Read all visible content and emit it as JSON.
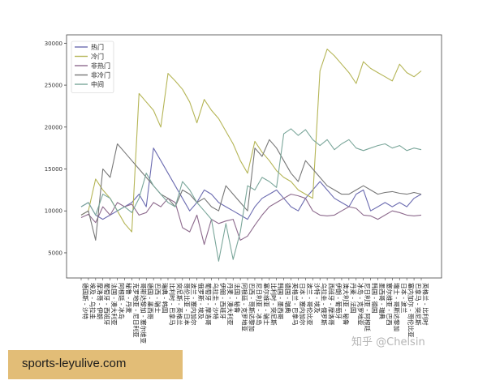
{
  "chart_data": {
    "type": "line",
    "categories": [
      "德国斯 - 沙特",
      "埃及 - 乌拉圭",
      "摩洛哥 - 伊朗",
      "葡萄牙 - 西班牙",
      "法国 - 澳大利亚",
      "阿根廷 - 冰岛",
      "秘鲁 - 丹麦",
      "克罗地亚 - 尼日利亚",
      "哥斯达黎加 - 塞尔维亚",
      "德国 - 墨西哥",
      "巴西 - 瑞士",
      "瑞典 - 韩国",
      "比利时 - 巴拿马",
      "突尼斯 - 英格兰",
      "哥伦比亚 - 日本",
      "波兰 - 塞内加尔",
      "俄罗斯 - 埃及",
      "葡萄牙 - 摩洛哥",
      "乌拉圭 - 沙特",
      "伊朗 - 西班牙",
      "丹麦 - 澳大利亚",
      "法国 - 秘鲁",
      "阿根廷 - 克罗地亚",
      "巴西 - 哥斯达黎加",
      "尼日利亚 - 冰岛",
      "塞尔维亚 - 瑞士",
      "比利时 - 突尼斯",
      "韩国 - 墨西哥",
      "德国 - 瑞典",
      "英格兰 - 巴拿马",
      "日本 - 塞内加尔",
      "波兰 - 哥伦比亚",
      "沙特 - 埃及",
      "乌拉圭 - 俄罗斯",
      "西班牙 - 摩洛哥",
      "伊朗 - 葡萄牙",
      "澳大利亚 - 秘鲁",
      "丹麦 - 法国",
      "冰岛 - 克罗地亚",
      "尼日利亚 - 阿根廷",
      "韩国 - 德国",
      "墨西哥 - 瑞典",
      "塞尔维亚 - 巴西",
      "瑞士 - 哥斯达黎加",
      "日本 - 波兰",
      "塞内加尔 - 哥伦比亚",
      "巴拿马 - 突尼斯",
      "英格兰 - 比利时"
    ],
    "series": [
      {
        "name": "热门",
        "color": "#6b6bb0",
        "values": [
          10500,
          11000,
          9500,
          9000,
          9500,
          10000,
          10500,
          11000,
          12000,
          10500,
          17500,
          16000,
          14500,
          13000,
          11500,
          10000,
          11000,
          12500,
          12000,
          11000,
          10500,
          10000,
          9500,
          9000,
          10500,
          11500,
          12000,
          12500,
          11500,
          10500,
          10000,
          11500,
          12500,
          13500,
          12500,
          11500,
          11000,
          10500,
          12000,
          12500,
          10000,
          10500,
          11000,
          10500,
          11000,
          10500,
          11500,
          12000
        ]
      },
      {
        "name": "冷门",
        "color": "#b5b556",
        "values": [
          9500,
          10000,
          13800,
          12500,
          11500,
          10000,
          8500,
          7500,
          24000,
          23000,
          22000,
          20000,
          26400,
          25500,
          24500,
          23000,
          20500,
          23300,
          22000,
          21000,
          19500,
          18000,
          16000,
          14500,
          18300,
          17000,
          16000,
          14800,
          14000,
          13500,
          12500,
          12000,
          11500,
          26700,
          29300,
          28500,
          27500,
          26500,
          25200,
          27800,
          27000,
          26500,
          26000,
          25500,
          27500,
          26500,
          26000,
          26700
        ]
      },
      {
        "name": "非热门",
        "color": "#8d6a8d",
        "values": [
          9200,
          9600,
          8600,
          10500,
          9500,
          11000,
          10500,
          10800,
          9500,
          9800,
          11000,
          10500,
          11500,
          11000,
          8000,
          7500,
          9500,
          6000,
          9000,
          8500,
          8800,
          9000,
          6500,
          7000,
          8300,
          9500,
          10500,
          11000,
          11500,
          12000,
          11800,
          11500,
          10000,
          9500,
          9400,
          9500,
          10000,
          10500,
          10300,
          9500,
          9400,
          9000,
          9500,
          10000,
          9800,
          9500,
          9400,
          9500
        ]
      },
      {
        "name": "非冷门",
        "color": "#777777",
        "values": [
          9500,
          10000,
          6500,
          15000,
          14000,
          18000,
          17000,
          16000,
          15000,
          14000,
          13000,
          12000,
          11500,
          10500,
          12500,
          12000,
          11000,
          11500,
          10500,
          10000,
          13000,
          12000,
          11000,
          10000,
          17500,
          16500,
          18500,
          17500,
          16000,
          14500,
          13500,
          16000,
          15000,
          14000,
          13000,
          12500,
          12000,
          12000,
          12500,
          13000,
          12500,
          12000,
          12200,
          12300,
          12100,
          12000,
          12200,
          12000
        ]
      },
      {
        "name": "中间",
        "color": "#7aa69a",
        "values": [
          10500,
          11000,
          9500,
          12000,
          11500,
          10000,
          10500,
          9800,
          11500,
          14500,
          13000,
          12000,
          11000,
          10500,
          13500,
          12500,
          11000,
          10000,
          9000,
          4000,
          8500,
          4200,
          7500,
          13000,
          12500,
          14000,
          13500,
          12800,
          19200,
          19800,
          19000,
          19700,
          18500,
          17800,
          18500,
          17300,
          18000,
          18500,
          17500,
          17200,
          17500,
          17800,
          18000,
          17500,
          17800,
          17200,
          17500,
          17300
        ]
      }
    ],
    "y_ticks": [
      "5000",
      "10000",
      "15000",
      "20000",
      "25000",
      "30000"
    ],
    "ylim": [
      2000,
      31000
    ],
    "grid": false,
    "legend_position": "top-left"
  },
  "watermark": "知乎 @Chelsin",
  "banner": {
    "text": "sports-leyulive.com",
    "background": "#e2bd77"
  }
}
